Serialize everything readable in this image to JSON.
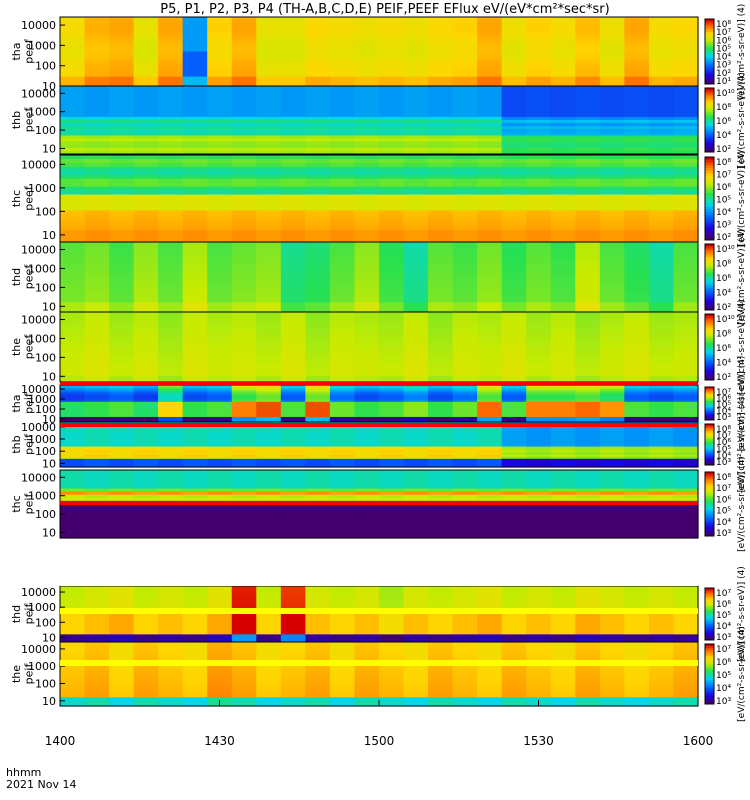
{
  "title": "P5, P1, P2, P3, P4 (TH-A,B,C,D,E) PEIF,PEEF EFlux eV/(eV*cm²*sec*sr)",
  "footer": {
    "time_label": "hhmm",
    "date_label": "2021 Nov 14"
  },
  "colors": {
    "fill_line": "#ff0000",
    "fill_band": "#ffff00",
    "axis": "#000000"
  },
  "chart_data": [
    {
      "type": "heatmap",
      "panel": "tha peef",
      "ylabel": [
        "tha",
        "peef"
      ],
      "yticks": [
        "10000",
        "1000",
        "100",
        "10"
      ],
      "ylim": [
        10,
        25000
      ],
      "yscale": "log",
      "colorbar": {
        "ticks": [
          "10⁸",
          "10⁷",
          "10⁶",
          "10⁵",
          "10⁴",
          "10³",
          "10²",
          "10¹"
        ],
        "label": "[eV/(cm²-s-sr-eV)] (4)",
        "clim": [
          1,
          9
        ]
      },
      "column_levels": [
        7.0,
        7.5,
        7.6,
        6.8,
        7.6,
        3.5,
        7.2,
        7.6,
        6.8,
        6.8,
        7.1,
        7.0,
        6.9,
        7.0,
        6.9,
        7.1,
        7.2,
        7.6,
        6.9,
        7.2,
        7.0,
        7.4,
        6.9,
        7.6,
        7.0,
        7.1
      ],
      "base_level": 7.7,
      "profile": "tha_e"
    },
    {
      "type": "heatmap",
      "panel": "thb peef",
      "ylabel": [
        "thb",
        "peef"
      ],
      "yticks": [
        "10000",
        "1000",
        "100",
        "10"
      ],
      "ylim": [
        5,
        25000
      ],
      "yscale": "log",
      "colorbar": {
        "ticks": [
          "10¹⁰",
          "10⁸",
          "10⁶",
          "10⁴",
          "10²"
        ],
        "label": "[eV/(cm²-s-sr-eV)] (4)",
        "clim": [
          1,
          10
        ]
      },
      "column_levels": [
        6.1,
        6.0,
        6.1,
        6.0,
        6.1,
        6.0,
        6.1,
        6.0,
        6.1,
        6.0,
        6.1,
        6.0,
        6.1,
        6.0,
        6.1,
        6.0,
        6.1,
        6.0,
        5.0,
        5.1,
        5.0,
        5.1,
        5.0,
        5.1,
        5.0,
        5.1
      ],
      "base_level": 6.0,
      "profile": "thb_e"
    },
    {
      "type": "heatmap",
      "panel": "thc peef",
      "ylabel": [
        "thc",
        "peef"
      ],
      "yticks": [
        "10000",
        "1000",
        "100",
        "10"
      ],
      "ylim": [
        5,
        25000
      ],
      "yscale": "log",
      "colorbar": {
        "ticks": [
          "10⁸",
          "10⁷",
          "10⁶",
          "10⁵",
          "10⁴",
          "10³",
          "10²"
        ],
        "label": "[eV/(cm²-s-sr-eV)] (4)",
        "clim": [
          1,
          8
        ]
      },
      "column_levels": [
        6.5,
        6.6,
        6.5,
        6.6,
        6.5,
        6.6,
        6.5,
        6.6,
        6.5,
        6.6,
        6.5,
        6.6,
        6.5,
        6.6,
        6.5,
        6.6,
        6.5,
        6.6,
        6.5,
        6.6,
        6.5,
        6.6,
        6.5,
        6.6,
        6.5,
        6.6
      ],
      "base_level": 6.5,
      "profile": "thc_e"
    },
    {
      "type": "heatmap",
      "panel": "thd peef",
      "ylabel": [
        "thd",
        "peef"
      ],
      "yticks": [
        "10000",
        "1000",
        "100",
        "10"
      ],
      "ylim": [
        5,
        25000
      ],
      "yscale": "log",
      "colorbar": {
        "ticks": [
          "10¹⁰",
          "10⁸",
          "10⁶",
          "10⁴",
          "10²"
        ],
        "label": "[eV/(cm²-s-sr-eV)] (4)",
        "clim": [
          1,
          10
        ]
      },
      "column_levels": [
        6.6,
        6.8,
        6.4,
        7.0,
        6.5,
        7.2,
        6.5,
        6.7,
        6.9,
        5.8,
        6.0,
        6.5,
        7.0,
        6.2,
        5.6,
        6.6,
        6.4,
        6.8,
        6.2,
        6.6,
        6.3,
        7.3,
        6.5,
        6.1,
        5.6,
        6.5
      ],
      "base_level": 6.5,
      "profile": "thd_e"
    },
    {
      "type": "heatmap",
      "panel": "the peef",
      "ylabel": [
        "the",
        "peef"
      ],
      "yticks": [
        "10000",
        "1000",
        "100",
        "10"
      ],
      "ylim": [
        5,
        25000
      ],
      "yscale": "log",
      "colorbar": {
        "ticks": [
          "10¹⁰",
          "10⁸",
          "10⁶",
          "10⁴",
          "10²"
        ],
        "label": "[eV/(cm²-s-sr-eV)] (4)",
        "clim": [
          1,
          10
        ]
      },
      "column_levels": [
        7.2,
        7.4,
        7.1,
        7.3,
        7.0,
        7.4,
        7.2,
        7.3,
        7.1,
        7.4,
        7.0,
        7.3,
        7.2,
        7.1,
        7.4,
        7.0,
        7.3,
        7.2,
        7.4,
        7.1,
        7.3,
        7.0,
        7.2,
        7.4,
        7.1,
        7.2
      ],
      "base_level": 7.2,
      "profile": "the_e"
    },
    {
      "type": "heatmap",
      "panel": "tha peif",
      "ylabel": [
        "tha",
        "peif"
      ],
      "yticks": [
        "10000",
        "1000",
        "100",
        "10"
      ],
      "ylim": [
        5,
        25000
      ],
      "yscale": "log",
      "colorbar": {
        "ticks": [
          "10⁷",
          "10⁶",
          "10⁵",
          "10⁴",
          "10³"
        ],
        "label": "[eV/(cm²-s-sr-eV)] (4)",
        "clim": [
          3,
          7
        ]
      },
      "column_levels": [
        4.9,
        5.0,
        5.1,
        4.9,
        5.9,
        5.0,
        5.1,
        6.3,
        6.5,
        5.1,
        6.5,
        5.2,
        5.0,
        5.1,
        5.3,
        5.0,
        5.2,
        6.4,
        5.1,
        6.3,
        6.3,
        6.4,
        6.2,
        5.1,
        5.0,
        5.1
      ],
      "base_level": 5.0,
      "profile": "tha_i"
    },
    {
      "type": "heatmap",
      "panel": "thb peif",
      "ylabel": [
        "thb",
        "peif"
      ],
      "yticks": [
        "10000",
        "1000",
        "100",
        "10"
      ],
      "ylim": [
        5,
        25000
      ],
      "yscale": "log",
      "colorbar": {
        "ticks": [
          "10⁸",
          "10⁷",
          "10⁶",
          "10⁵",
          "10⁴",
          "10³"
        ],
        "label": "[eV/(cm²-s-sr-eV)] (4)",
        "clim": [
          3,
          8
        ]
      },
      "column_levels": [
        5.9,
        6.0,
        5.9,
        6.0,
        5.9,
        6.0,
        5.9,
        6.0,
        5.9,
        6.0,
        5.9,
        6.0,
        5.9,
        6.0,
        5.9,
        6.0,
        5.9,
        6.0,
        5.4,
        5.3,
        5.4,
        5.3,
        5.4,
        5.3,
        5.4,
        5.3
      ],
      "base_level": 5.9,
      "profile": "thb_i"
    },
    {
      "type": "heatmap",
      "panel": "thc peif",
      "ylabel": [
        "thc",
        "peif"
      ],
      "yticks": [
        "10000",
        "1000",
        "100",
        "10"
      ],
      "ylim": [
        5,
        25000
      ],
      "yscale": "log",
      "colorbar": {
        "ticks": [
          "10⁸",
          "10⁷",
          "10⁶",
          "10⁵",
          "10⁴",
          "10³"
        ],
        "label": "[eV/(cm²-s-sr-eV)] (4)",
        "clim": [
          3,
          8
        ]
      },
      "column_levels": [
        5.6,
        5.5,
        5.6,
        5.5,
        5.6,
        5.5,
        5.6,
        5.5,
        5.6,
        5.5,
        5.6,
        5.5,
        5.6,
        5.5,
        5.6,
        5.5,
        5.6,
        5.5,
        5.6,
        5.5,
        5.6,
        5.5,
        5.6,
        5.5,
        5.6,
        5.5
      ],
      "base_level": 5.6,
      "profile": "thc_i"
    },
    {
      "type": "heatmap",
      "panel": "thd peif",
      "ylabel": [
        "thd",
        "peif"
      ],
      "yticks": [
        "10000",
        "1000",
        "100",
        "10"
      ],
      "ylim": [
        5,
        25000
      ],
      "yscale": "log",
      "colorbar": {
        "ticks": [
          "10⁷",
          "10⁶",
          "10⁵",
          "10⁴",
          "10³"
        ],
        "label": "[eV/(cm²-s-sr-eV)] (4)",
        "clim": [
          3,
          7
        ]
      },
      "column_levels": [
        5.8,
        5.9,
        6.0,
        5.8,
        5.9,
        5.8,
        6.0,
        7.0,
        5.8,
        6.9,
        5.9,
        5.8,
        5.9,
        5.7,
        5.9,
        5.8,
        5.9,
        6.0,
        5.8,
        5.9,
        5.8,
        6.0,
        5.9,
        5.8,
        5.9,
        5.8
      ],
      "base_level": 5.9,
      "profile": "thd_i"
    },
    {
      "type": "heatmap",
      "panel": "the peif",
      "ylabel": [
        "the",
        "peif"
      ],
      "yticks": [
        "10000",
        "1000",
        "100",
        "10"
      ],
      "ylim": [
        5,
        25000
      ],
      "yscale": "log",
      "colorbar": {
        "ticks": [
          "10⁷",
          "10⁶",
          "10⁵",
          "10⁴",
          "10³"
        ],
        "label": "[eV/(cm²-s-sr-eV)] (4)",
        "clim": [
          3,
          7
        ]
      },
      "column_levels": [
        6.1,
        6.2,
        6.0,
        6.2,
        6.1,
        6.0,
        6.3,
        6.2,
        6.0,
        6.1,
        6.2,
        6.0,
        6.2,
        6.1,
        6.0,
        6.2,
        6.1,
        6.0,
        6.2,
        6.1,
        6.0,
        6.2,
        6.1,
        6.0,
        6.1,
        6.2
      ],
      "base_level": 6.1,
      "profile": "the_i"
    }
  ],
  "x_axis": {
    "ticks": [
      "1400",
      "1430",
      "1500",
      "1530",
      "1600"
    ],
    "xlim": [
      1400,
      1600
    ],
    "unit": "hhmm"
  }
}
